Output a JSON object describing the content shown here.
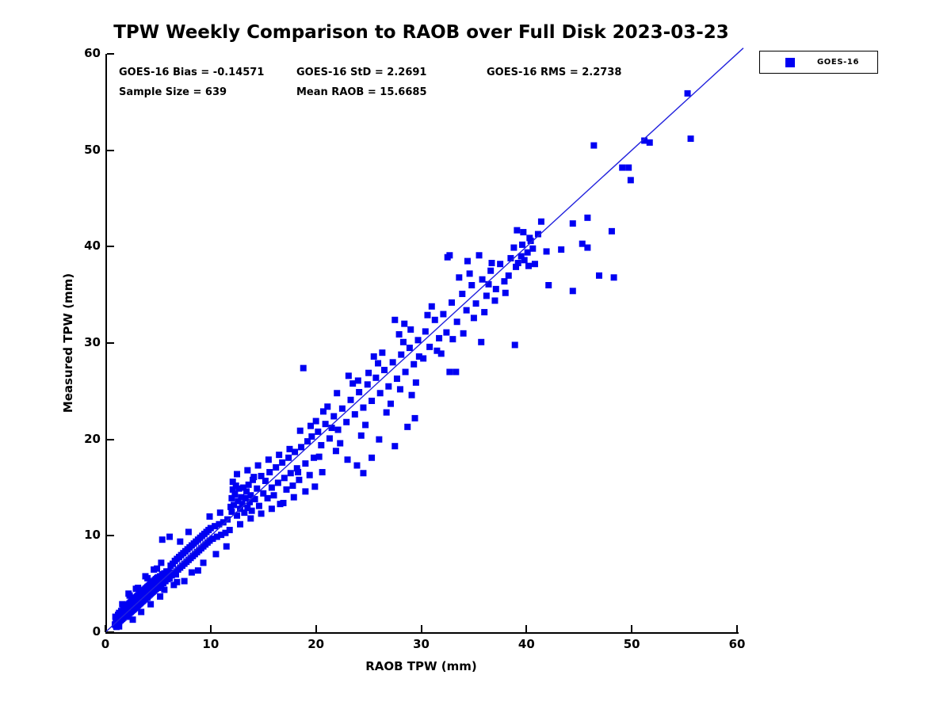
{
  "title": "TPW Weekly Comparison to RAOB over Full Disk 2023-03-23",
  "stats": {
    "bias": "GOES-16 Bias = -0.14571",
    "std": "GOES-16 StD = 2.2691",
    "rms": "GOES-16 RMS = 2.2738",
    "sample_size": "Sample Size = 639",
    "mean_raob": "Mean RAOB = 15.6685"
  },
  "legend": {
    "label": "GOES-16"
  },
  "axes": {
    "xlabel": "RAOB TPW (mm)",
    "ylabel": "Measured TPW (mm)"
  },
  "chart_data": {
    "type": "scatter",
    "title": "TPW Weekly Comparison to RAOB over Full Disk 2023-03-23",
    "xlabel": "RAOB TPW (mm)",
    "ylabel": "Measured TPW (mm)",
    "xlim": [
      0,
      60
    ],
    "ylim": [
      0,
      60
    ],
    "xticks": [
      0,
      10,
      20,
      30,
      40,
      50,
      60
    ],
    "yticks": [
      0,
      10,
      20,
      30,
      40,
      50,
      60
    ],
    "grid": false,
    "legend_position": "outside-top-right",
    "series_name": "GOES-16",
    "marker": "square",
    "marker_color": "#0000f2",
    "marker_size_px": 8,
    "identity_line": {
      "from": [
        0,
        0
      ],
      "to": [
        60.6,
        60.6
      ],
      "color": "#2222dd",
      "width": 1.4
    },
    "annotations": [
      "GOES-16 Bias = -0.14571",
      "GOES-16 StD = 2.2691",
      "GOES-16 RMS = 2.2738",
      "Sample Size = 639",
      "Mean RAOB = 15.6685"
    ],
    "points": [
      [
        0.9,
        0.8
      ],
      [
        1.0,
        1.2
      ],
      [
        1.0,
        0.7
      ],
      [
        1.1,
        1.5
      ],
      [
        1.1,
        0.9
      ],
      [
        1.2,
        1.0
      ],
      [
        1.2,
        1.8
      ],
      [
        1.3,
        1.1
      ],
      [
        1.3,
        2.0
      ],
      [
        1.4,
        1.2
      ],
      [
        1.4,
        1.9
      ],
      [
        1.5,
        1.3
      ],
      [
        1.5,
        2.2
      ],
      [
        1.6,
        1.4
      ],
      [
        1.6,
        2.1
      ],
      [
        1.7,
        1.5
      ],
      [
        1.7,
        2.4
      ],
      [
        1.8,
        1.6
      ],
      [
        1.8,
        2.5
      ],
      [
        1.9,
        1.7
      ],
      [
        1.9,
        2.6
      ],
      [
        2.0,
        1.6
      ],
      [
        2.0,
        2.7
      ],
      [
        2.1,
        1.8
      ],
      [
        2.1,
        2.8
      ],
      [
        2.2,
        1.9
      ],
      [
        2.2,
        2.9
      ],
      [
        2.3,
        2.0
      ],
      [
        2.3,
        3.0
      ],
      [
        2.4,
        2.1
      ],
      [
        2.4,
        3.1
      ],
      [
        2.5,
        2.2
      ],
      [
        2.5,
        3.2
      ],
      [
        2.6,
        2.3
      ],
      [
        2.6,
        3.3
      ],
      [
        2.7,
        2.4
      ],
      [
        2.7,
        3.4
      ],
      [
        2.8,
        2.5
      ],
      [
        2.8,
        3.5
      ],
      [
        2.9,
        2.6
      ],
      [
        2.9,
        3.6
      ],
      [
        3.0,
        2.6
      ],
      [
        3.0,
        3.7
      ],
      [
        3.1,
        2.8
      ],
      [
        3.1,
        3.8
      ],
      [
        3.2,
        2.9
      ],
      [
        3.2,
        3.9
      ],
      [
        3.3,
        3.0
      ],
      [
        3.3,
        4.0
      ],
      [
        3.4,
        3.1
      ],
      [
        3.4,
        4.1
      ],
      [
        3.5,
        3.2
      ],
      [
        3.5,
        4.2
      ],
      [
        3.6,
        3.3
      ],
      [
        3.6,
        4.3
      ],
      [
        3.7,
        3.4
      ],
      [
        3.7,
        4.4
      ],
      [
        3.8,
        3.5
      ],
      [
        3.8,
        4.5
      ],
      [
        3.9,
        3.6
      ],
      [
        3.9,
        4.6
      ],
      [
        4.0,
        3.6
      ],
      [
        4.0,
        4.7
      ],
      [
        4.1,
        3.8
      ],
      [
        4.1,
        4.8
      ],
      [
        4.2,
        3.9
      ],
      [
        4.2,
        4.9
      ],
      [
        4.3,
        4.0
      ],
      [
        4.3,
        5.0
      ],
      [
        4.4,
        4.1
      ],
      [
        4.4,
        5.1
      ],
      [
        4.5,
        4.2
      ],
      [
        4.5,
        5.2
      ],
      [
        4.6,
        4.3
      ],
      [
        4.6,
        5.3
      ],
      [
        4.7,
        4.4
      ],
      [
        4.7,
        5.4
      ],
      [
        4.8,
        4.5
      ],
      [
        4.8,
        5.5
      ],
      [
        4.9,
        4.6
      ],
      [
        4.9,
        5.6
      ],
      [
        5.0,
        4.6
      ],
      [
        5.0,
        5.7
      ],
      [
        5.1,
        4.8
      ],
      [
        5.2,
        5.8
      ],
      [
        5.3,
        4.9
      ],
      [
        5.4,
        6.0
      ],
      [
        5.5,
        5.1
      ],
      [
        5.6,
        6.1
      ],
      [
        5.7,
        5.3
      ],
      [
        5.8,
        6.3
      ],
      [
        5.9,
        5.5
      ],
      [
        1.2,
        1.4
      ],
      [
        1.5,
        1.7
      ],
      [
        1.8,
        2.0
      ],
      [
        2.0,
        2.2
      ],
      [
        2.1,
        2.3
      ],
      [
        2.4,
        2.6
      ],
      [
        2.7,
        2.9
      ],
      [
        2.8,
        3.0
      ],
      [
        3.0,
        3.2
      ],
      [
        3.3,
        3.5
      ],
      [
        3.5,
        3.7
      ],
      [
        3.6,
        3.8
      ],
      [
        3.9,
        4.1
      ],
      [
        4.2,
        4.4
      ],
      [
        4.4,
        4.6
      ],
      [
        4.5,
        4.7
      ],
      [
        4.8,
        5.0
      ],
      [
        5.1,
        5.3
      ],
      [
        5.4,
        5.6
      ],
      [
        5.7,
        5.9
      ],
      [
        0.95,
        1.6
      ],
      [
        1.05,
        0.55
      ],
      [
        1.3,
        0.6
      ],
      [
        1.6,
        2.9
      ],
      [
        2.2,
        4.0
      ],
      [
        2.3,
        3.8
      ],
      [
        2.6,
        1.3
      ],
      [
        2.9,
        4.5
      ],
      [
        3.1,
        4.6
      ],
      [
        3.4,
        2.1
      ],
      [
        3.8,
        5.8
      ],
      [
        4.0,
        5.6
      ],
      [
        4.3,
        2.9
      ],
      [
        4.6,
        6.5
      ],
      [
        4.9,
        6.6
      ],
      [
        5.2,
        3.7
      ],
      [
        5.3,
        7.2
      ],
      [
        5.6,
        4.4
      ],
      [
        6.0,
        6.3
      ],
      [
        6.1,
        5.6
      ],
      [
        6.2,
        6.9
      ],
      [
        6.3,
        5.9
      ],
      [
        6.4,
        7.1
      ],
      [
        6.5,
        6.2
      ],
      [
        6.6,
        7.4
      ],
      [
        6.7,
        6.0
      ],
      [
        6.8,
        7.6
      ],
      [
        6.9,
        6.5
      ],
      [
        7.0,
        7.8
      ],
      [
        7.1,
        6.7
      ],
      [
        7.2,
        8.0
      ],
      [
        7.3,
        6.9
      ],
      [
        7.4,
        8.2
      ],
      [
        7.5,
        7.1
      ],
      [
        7.6,
        8.4
      ],
      [
        7.7,
        7.3
      ],
      [
        7.8,
        8.6
      ],
      [
        7.9,
        7.5
      ],
      [
        8.0,
        8.8
      ],
      [
        8.1,
        7.7
      ],
      [
        8.2,
        9.0
      ],
      [
        8.3,
        7.9
      ],
      [
        8.4,
        9.2
      ],
      [
        8.5,
        8.1
      ],
      [
        8.6,
        9.4
      ],
      [
        8.7,
        8.3
      ],
      [
        8.8,
        9.6
      ],
      [
        8.9,
        8.5
      ],
      [
        9.0,
        9.8
      ],
      [
        9.1,
        8.7
      ],
      [
        9.2,
        10.0
      ],
      [
        9.3,
        8.9
      ],
      [
        9.4,
        10.2
      ],
      [
        9.5,
        9.1
      ],
      [
        9.6,
        10.4
      ],
      [
        9.7,
        9.3
      ],
      [
        9.8,
        10.6
      ],
      [
        9.9,
        9.5
      ],
      [
        10.0,
        10.8
      ],
      [
        10.2,
        9.7
      ],
      [
        10.4,
        11.0
      ],
      [
        10.6,
        9.9
      ],
      [
        10.8,
        11.2
      ],
      [
        11.0,
        10.1
      ],
      [
        11.2,
        11.4
      ],
      [
        11.4,
        10.3
      ],
      [
        11.6,
        11.7
      ],
      [
        11.8,
        10.6
      ],
      [
        6.1,
        9.9
      ],
      [
        5.4,
        9.6
      ],
      [
        7.9,
        10.4
      ],
      [
        7.5,
        5.3
      ],
      [
        8.8,
        6.4
      ],
      [
        10.5,
        8.1
      ],
      [
        11.5,
        8.9
      ],
      [
        6.5,
        4.9
      ],
      [
        9.3,
        7.2
      ],
      [
        10.9,
        12.4
      ],
      [
        8.2,
        6.2
      ],
      [
        7.1,
        9.4
      ],
      [
        11.9,
        13.0
      ],
      [
        6.8,
        5.2
      ],
      [
        9.9,
        12.0
      ],
      [
        12.0,
        12.5
      ],
      [
        12.0,
        13.9
      ],
      [
        12.1,
        14.8
      ],
      [
        12.1,
        15.6
      ],
      [
        12.2,
        13.2
      ],
      [
        12.3,
        14.3
      ],
      [
        12.4,
        15.2
      ],
      [
        12.5,
        12.1
      ],
      [
        12.6,
        13.6
      ],
      [
        12.7,
        14.9
      ],
      [
        12.8,
        12.8
      ],
      [
        12.9,
        14.0
      ],
      [
        13.0,
        13.3
      ],
      [
        13.1,
        15.0
      ],
      [
        13.2,
        12.4
      ],
      [
        13.3,
        13.9
      ],
      [
        13.4,
        14.6
      ],
      [
        13.5,
        12.9
      ],
      [
        13.6,
        15.3
      ],
      [
        13.7,
        13.5
      ],
      [
        13.8,
        14.2
      ],
      [
        13.9,
        12.6
      ],
      [
        14.0,
        15.8
      ],
      [
        14.2,
        13.8
      ],
      [
        14.4,
        14.9
      ],
      [
        14.6,
        13.1
      ],
      [
        14.8,
        16.2
      ],
      [
        15.0,
        14.4
      ],
      [
        15.2,
        15.7
      ],
      [
        15.4,
        13.9
      ],
      [
        15.6,
        16.6
      ],
      [
        15.8,
        15.0
      ],
      [
        16.0,
        14.2
      ],
      [
        16.2,
        17.1
      ],
      [
        16.4,
        15.5
      ],
      [
        16.6,
        13.3
      ],
      [
        16.8,
        17.6
      ],
      [
        17.0,
        16.0
      ],
      [
        17.2,
        14.8
      ],
      [
        17.4,
        18.1
      ],
      [
        17.6,
        16.5
      ],
      [
        17.8,
        15.2
      ],
      [
        18.0,
        18.7
      ],
      [
        18.2,
        17.0
      ],
      [
        18.4,
        15.8
      ],
      [
        18.6,
        19.2
      ],
      [
        18.8,
        27.4
      ],
      [
        19.0,
        17.5
      ],
      [
        19.2,
        19.8
      ],
      [
        19.4,
        16.3
      ],
      [
        19.6,
        20.3
      ],
      [
        19.8,
        18.1
      ],
      [
        12.5,
        16.4
      ],
      [
        13.5,
        16.8
      ],
      [
        14.5,
        17.3
      ],
      [
        15.5,
        17.9
      ],
      [
        16.5,
        18.4
      ],
      [
        17.5,
        19.0
      ],
      [
        18.5,
        20.9
      ],
      [
        19.5,
        21.4
      ],
      [
        12.8,
        11.2
      ],
      [
        13.8,
        11.8
      ],
      [
        14.8,
        12.3
      ],
      [
        15.8,
        12.8
      ],
      [
        16.9,
        13.4
      ],
      [
        17.9,
        14.0
      ],
      [
        19.0,
        14.6
      ],
      [
        19.9,
        15.1
      ],
      [
        18.3,
        16.6
      ],
      [
        14.1,
        16.1
      ],
      [
        20.2,
        20.8
      ],
      [
        20.5,
        19.4
      ],
      [
        20.9,
        21.6
      ],
      [
        21.3,
        20.1
      ],
      [
        21.7,
        22.4
      ],
      [
        22.1,
        21.0
      ],
      [
        22.5,
        23.2
      ],
      [
        22.9,
        21.8
      ],
      [
        23.3,
        24.1
      ],
      [
        23.7,
        22.6
      ],
      [
        24.1,
        24.9
      ],
      [
        24.5,
        23.3
      ],
      [
        24.9,
        25.7
      ],
      [
        25.3,
        24.0
      ],
      [
        25.7,
        26.4
      ],
      [
        26.1,
        24.8
      ],
      [
        26.5,
        27.2
      ],
      [
        26.9,
        25.5
      ],
      [
        27.3,
        28.0
      ],
      [
        27.7,
        26.3
      ],
      [
        28.1,
        28.8
      ],
      [
        28.5,
        27.0
      ],
      [
        28.9,
        29.5
      ],
      [
        29.3,
        27.8
      ],
      [
        29.7,
        30.3
      ],
      [
        20.3,
        18.2
      ],
      [
        21.1,
        23.4
      ],
      [
        22.3,
        19.6
      ],
      [
        23.5,
        25.8
      ],
      [
        24.7,
        21.5
      ],
      [
        25.9,
        27.9
      ],
      [
        27.1,
        23.7
      ],
      [
        28.3,
        30.1
      ],
      [
        29.5,
        25.9
      ],
      [
        20.7,
        22.9
      ],
      [
        21.9,
        18.8
      ],
      [
        23.1,
        26.6
      ],
      [
        24.3,
        20.4
      ],
      [
        25.5,
        28.6
      ],
      [
        26.7,
        22.8
      ],
      [
        27.9,
        30.9
      ],
      [
        29.1,
        24.6
      ],
      [
        26.0,
        20.0
      ],
      [
        27.5,
        19.3
      ],
      [
        24.5,
        16.5
      ],
      [
        25.3,
        18.1
      ],
      [
        28.7,
        21.3
      ],
      [
        29.4,
        22.2
      ],
      [
        27.5,
        32.4
      ],
      [
        28.4,
        32.0
      ],
      [
        29.0,
        31.4
      ],
      [
        23.0,
        17.9
      ],
      [
        22.0,
        24.8
      ],
      [
        25.0,
        26.9
      ],
      [
        20.0,
        21.9
      ],
      [
        21.5,
        21.2
      ],
      [
        26.3,
        29.0
      ],
      [
        24.0,
        26.1
      ],
      [
        28.0,
        25.2
      ],
      [
        29.8,
        28.6
      ],
      [
        23.9,
        17.3
      ],
      [
        20.6,
        16.6
      ],
      [
        30.2,
        28.4
      ],
      [
        30.4,
        31.2
      ],
      [
        30.6,
        32.9
      ],
      [
        30.8,
        29.6
      ],
      [
        31.0,
        33.8
      ],
      [
        31.3,
        32.4
      ],
      [
        31.5,
        29.2
      ],
      [
        31.7,
        30.5
      ],
      [
        31.9,
        28.9
      ],
      [
        32.1,
        33.0
      ],
      [
        32.4,
        31.1
      ],
      [
        32.7,
        39.1
      ],
      [
        32.7,
        27.0
      ],
      [
        32.9,
        34.2
      ],
      [
        33.0,
        30.4
      ],
      [
        33.3,
        27.0
      ],
      [
        33.4,
        32.2
      ],
      [
        33.6,
        36.8
      ],
      [
        33.9,
        35.1
      ],
      [
        34.0,
        31.0
      ],
      [
        34.3,
        33.4
      ],
      [
        34.4,
        38.5
      ],
      [
        34.6,
        37.2
      ],
      [
        34.8,
        36.0
      ],
      [
        35.0,
        32.6
      ],
      [
        35.2,
        34.1
      ],
      [
        35.5,
        39.1
      ],
      [
        35.7,
        30.1
      ],
      [
        35.8,
        36.6
      ],
      [
        36.0,
        33.2
      ],
      [
        36.2,
        34.9
      ],
      [
        36.4,
        36.1
      ],
      [
        36.6,
        37.5
      ],
      [
        36.7,
        38.3
      ],
      [
        37.0,
        34.4
      ],
      [
        37.1,
        35.6
      ],
      [
        37.5,
        38.2
      ],
      [
        37.9,
        36.4
      ],
      [
        38.0,
        35.2
      ],
      [
        38.3,
        37.0
      ],
      [
        38.5,
        38.8
      ],
      [
        38.8,
        39.9
      ],
      [
        38.9,
        29.8
      ],
      [
        39.0,
        37.9
      ],
      [
        39.1,
        41.7
      ],
      [
        39.2,
        38.3
      ],
      [
        39.5,
        39.0
      ],
      [
        39.6,
        40.2
      ],
      [
        39.7,
        41.5
      ],
      [
        39.8,
        38.6
      ],
      [
        40.1,
        39.4
      ],
      [
        40.2,
        38.0
      ],
      [
        40.4,
        40.6
      ],
      [
        40.6,
        39.8
      ],
      [
        32.5,
        38.9
      ],
      [
        41.1,
        41.3
      ],
      [
        41.4,
        42.6
      ],
      [
        40.8,
        38.2
      ],
      [
        41.9,
        39.5
      ],
      [
        42.1,
        36.0
      ],
      [
        43.3,
        39.7
      ],
      [
        44.4,
        42.4
      ],
      [
        44.4,
        35.4
      ],
      [
        45.3,
        40.3
      ],
      [
        45.8,
        43.0
      ],
      [
        45.8,
        39.9
      ],
      [
        46.9,
        37.0
      ],
      [
        48.1,
        41.6
      ],
      [
        48.3,
        36.8
      ],
      [
        49.1,
        48.2
      ],
      [
        49.7,
        48.2
      ],
      [
        49.9,
        46.9
      ],
      [
        46.4,
        50.5
      ],
      [
        40.3,
        40.9
      ],
      [
        51.2,
        51.0
      ],
      [
        51.7,
        50.8
      ],
      [
        55.3,
        55.9
      ],
      [
        55.6,
        51.2
      ]
    ]
  }
}
